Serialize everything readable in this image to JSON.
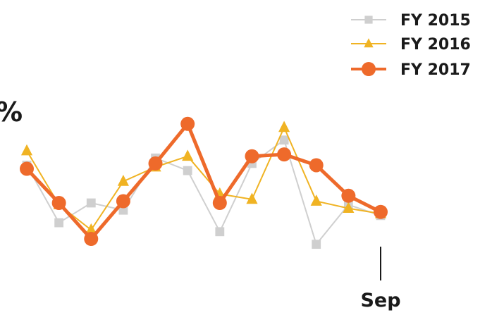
{
  "chart_data": {
    "type": "line",
    "title": "",
    "xlabel": "",
    "ylabel": "",
    "y_unit_label": "%",
    "x": [
      "",
      "",
      "",
      "",
      "",
      "",
      "",
      "",
      "",
      "",
      "",
      "Sep"
    ],
    "visible_tick_label": "Sep",
    "ylim": [
      0,
      1
    ],
    "grid": false,
    "legend_position": "top-right",
    "series": [
      {
        "name": "FY 2015",
        "color": "#cfcfcf",
        "marker": "square",
        "values": [
          0.61,
          0.29,
          0.4,
          0.36,
          0.65,
          0.58,
          0.24,
          0.62,
          0.75,
          0.17,
          0.39,
          0.33
        ]
      },
      {
        "name": "FY 2016",
        "color": "#f0b323",
        "marker": "triangle",
        "values": [
          0.69,
          0.39,
          0.25,
          0.52,
          0.6,
          0.66,
          0.45,
          0.42,
          0.82,
          0.41,
          0.37,
          0.34
        ]
      },
      {
        "name": "FY 2017",
        "color": "#ee6a2b",
        "marker": "circle",
        "values": [
          0.59,
          0.4,
          0.2,
          0.41,
          0.62,
          0.84,
          0.4,
          0.66,
          0.67,
          0.61,
          0.44,
          0.35
        ]
      }
    ]
  }
}
